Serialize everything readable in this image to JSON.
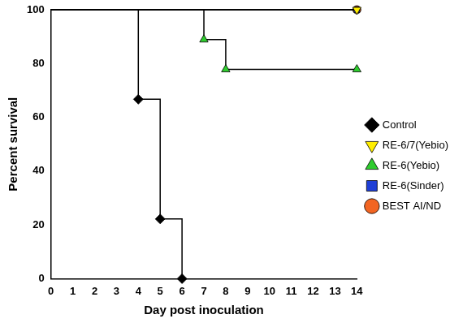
{
  "chart_data": {
    "type": "line",
    "x_label": "Day post inoculation",
    "y_label": "Percent survival",
    "x": [
      0,
      4,
      5,
      6,
      7,
      8,
      14
    ],
    "series": [
      {
        "name": "BEST AI/ND",
        "color": "#f26522",
        "marker": "circle",
        "values": [
          100,
          null,
          null,
          null,
          null,
          null,
          100
        ]
      },
      {
        "name": "RE-6(Sinder)",
        "color": "#1f3fd6",
        "marker": "square",
        "values": [
          100,
          null,
          null,
          null,
          null,
          null,
          100
        ]
      },
      {
        "name": "RE-6(Yebio)",
        "color": "#2ecc2e",
        "marker": "triangle",
        "values": [
          100,
          null,
          null,
          null,
          88.9,
          77.8,
          77.8
        ]
      },
      {
        "name": "RE-6/7(Yebio)",
        "color": "#ffee00",
        "marker": "triangle-down",
        "values": [
          100,
          null,
          null,
          null,
          null,
          null,
          100
        ]
      },
      {
        "name": "Control",
        "color": "#000000",
        "marker": "diamond",
        "values": [
          100,
          66.7,
          22.2,
          0,
          null,
          null,
          null
        ]
      }
    ],
    "xlim": [
      0,
      14
    ],
    "xticks": [
      0,
      1,
      2,
      3,
      4,
      5,
      6,
      7,
      8,
      9,
      10,
      11,
      12,
      13,
      14
    ],
    "ylim": [
      0,
      100
    ],
    "yticks": [
      0,
      20,
      40,
      60,
      80,
      100
    ],
    "grid": false,
    "legend": "right",
    "line_style": "stepped"
  }
}
